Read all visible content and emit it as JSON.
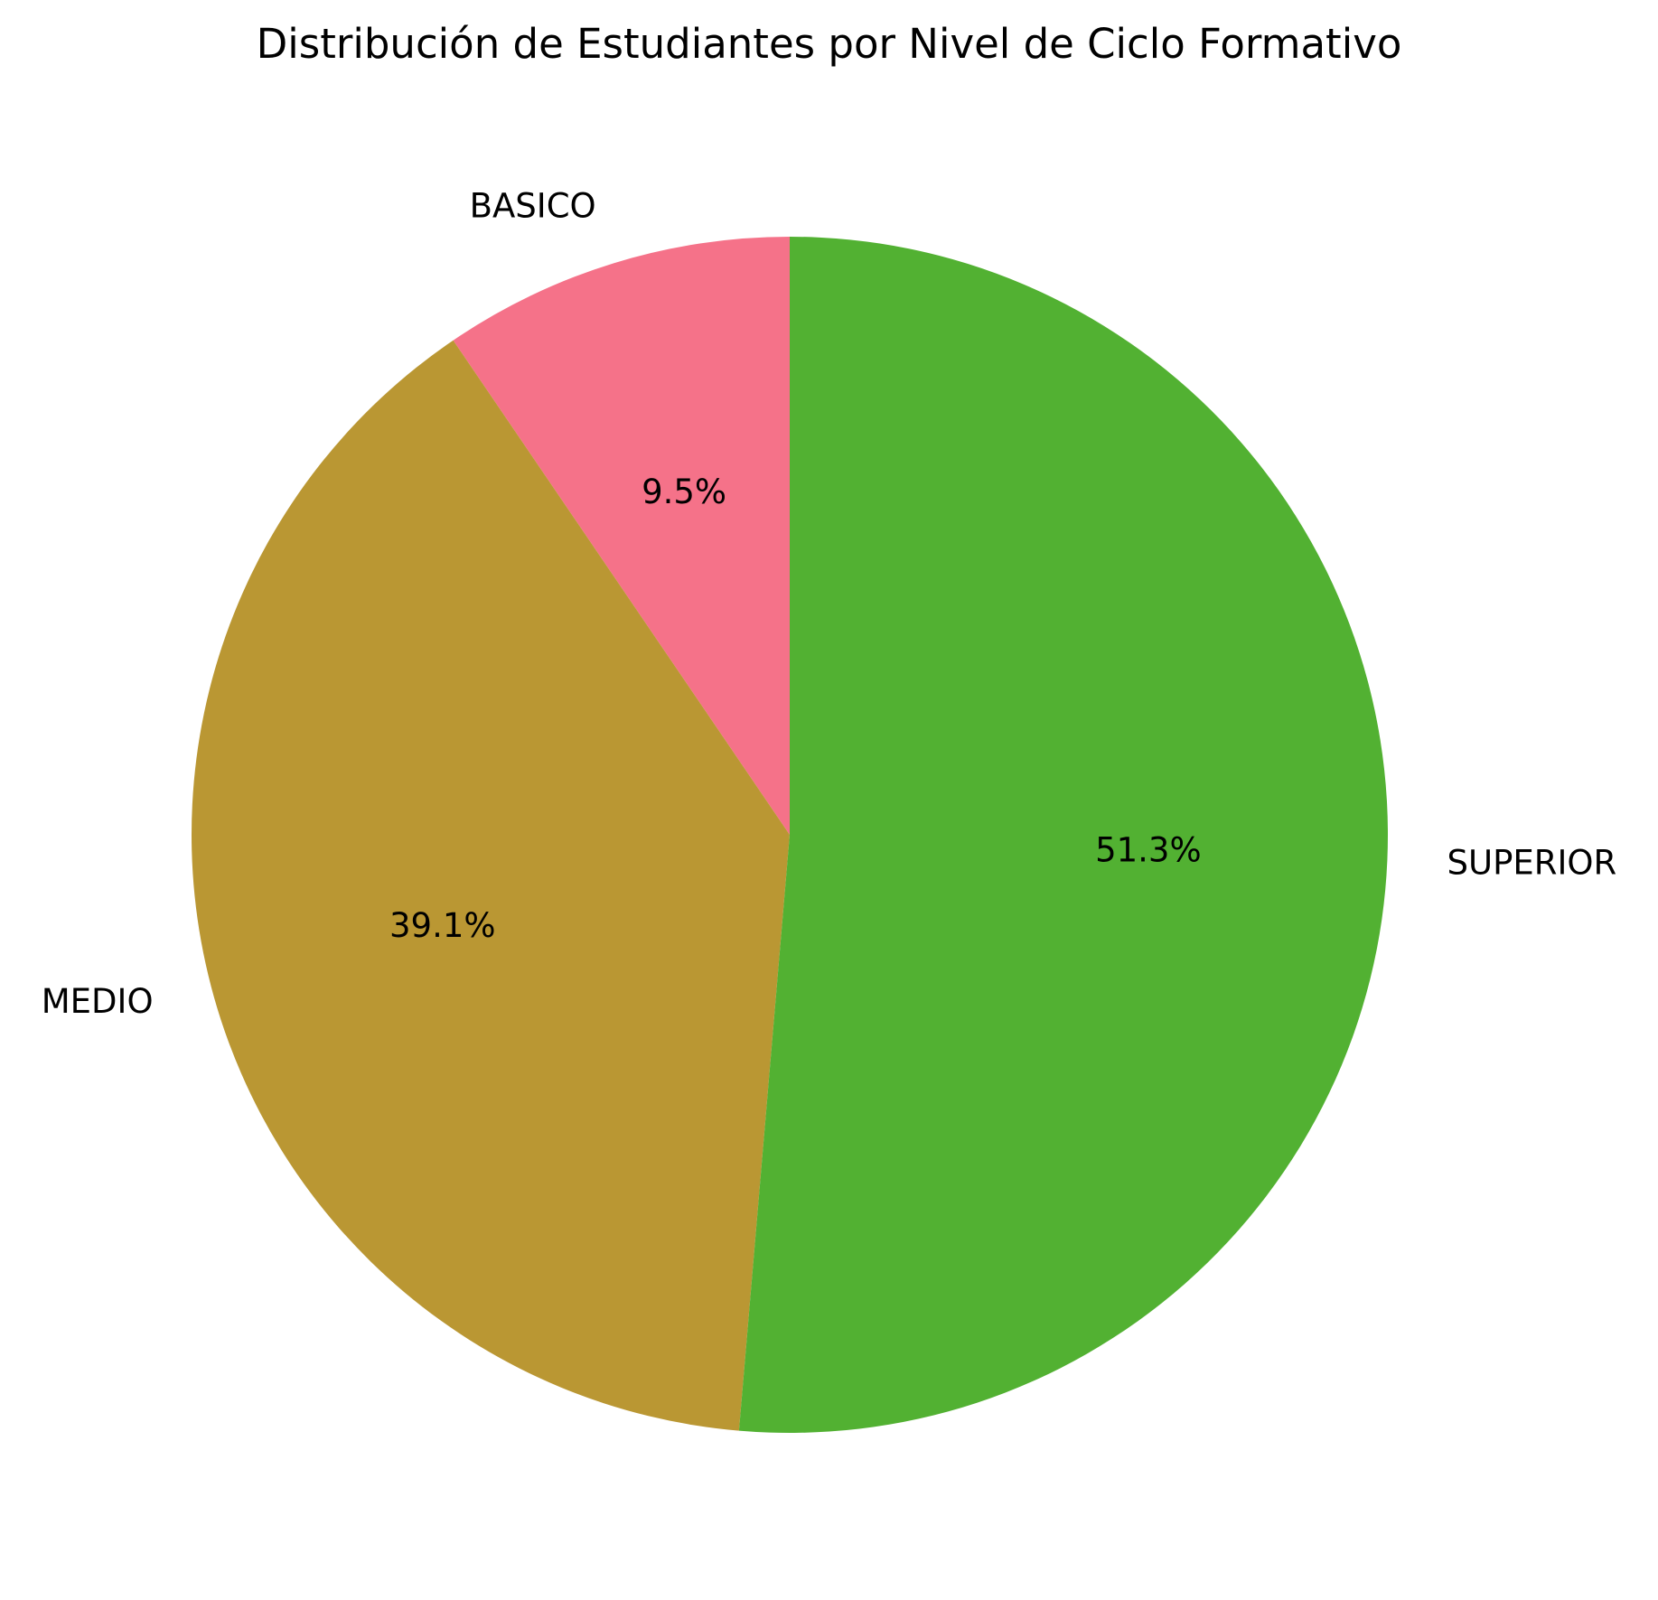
{
  "chart_data": {
    "type": "pie",
    "title": "Distribución de Estudiantes por Nivel de Ciclo Formativo",
    "categories": [
      "BASICO",
      "MEDIO",
      "SUPERIOR"
    ],
    "values": [
      9.5,
      39.1,
      51.3
    ],
    "value_labels": [
      "9.5%",
      "39.1%",
      "51.3%"
    ],
    "colors": [
      "#f57289",
      "#ba9733",
      "#52b132"
    ],
    "start_angle_deg": 90,
    "direction": "counterclockwise",
    "legend": "none"
  }
}
